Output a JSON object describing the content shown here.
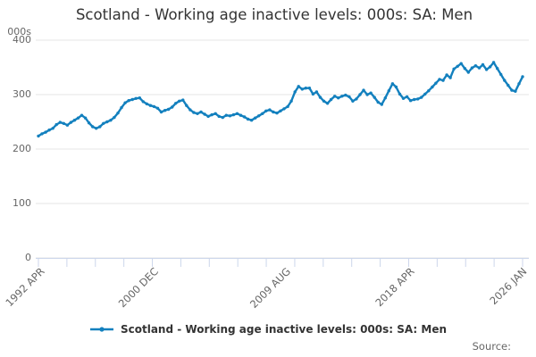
{
  "title": "Scotland - Working age inactive levels: 000s: SA: Men",
  "y_axis_unit": "000s",
  "legend": {
    "label": "Scotland - Working age inactive levels: 000s: SA: Men"
  },
  "source_label": "Source:",
  "chart_data": {
    "type": "line",
    "title": "Scotland - Working age inactive levels: 000s: SA: Men",
    "series_name": "Scotland - Working age inactive levels: 000s: SA: Men",
    "xlabel": "",
    "ylabel": "000s",
    "ylim": [
      0,
      400
    ],
    "yticks": [
      400,
      300,
      200,
      100,
      0
    ],
    "x_tick_labels": [
      "1992 APR",
      "2000 DEC",
      "2009 AUG",
      "2018 APR",
      "2026 JAN"
    ],
    "grid": "horizontal",
    "legend_position": "bottom",
    "line_color": "#1380be",
    "axis_color": "#ccd6eb",
    "grid_color": "#e6e6e6",
    "text_color": "#666666",
    "x": [
      "1992 APR",
      "1992 JUL",
      "1992 OCT",
      "1993 JAN",
      "1993 APR",
      "1993 JUL",
      "1993 OCT",
      "1994 JAN",
      "1994 APR",
      "1994 JUL",
      "1994 OCT",
      "1995 JAN",
      "1995 APR",
      "1995 JUL",
      "1995 OCT",
      "1996 JAN",
      "1996 APR",
      "1996 JUL",
      "1996 OCT",
      "1997 JAN",
      "1997 APR",
      "1997 JUL",
      "1997 OCT",
      "1998 JAN",
      "1998 APR",
      "1998 JUL",
      "1998 OCT",
      "1999 JAN",
      "1999 APR",
      "1999 JUL",
      "1999 OCT",
      "2000 JAN",
      "2000 APR",
      "2000 JUL",
      "2000 OCT",
      "2001 JAN",
      "2001 APR",
      "2001 JUL",
      "2001 OCT",
      "2002 JAN",
      "2002 APR",
      "2002 JUL",
      "2002 OCT",
      "2003 JAN",
      "2003 APR",
      "2003 JUL",
      "2003 OCT",
      "2004 JAN",
      "2004 APR",
      "2004 JUL",
      "2004 OCT",
      "2005 JAN",
      "2005 APR",
      "2005 JUL",
      "2005 OCT",
      "2006 JAN",
      "2006 APR",
      "2006 JUL",
      "2006 OCT",
      "2007 JAN",
      "2007 APR",
      "2007 JUL",
      "2007 OCT",
      "2008 JAN",
      "2008 APR",
      "2008 JUL",
      "2008 OCT",
      "2009 JAN",
      "2009 APR",
      "2009 JUL",
      "2009 OCT",
      "2010 JAN",
      "2010 APR",
      "2010 JUL",
      "2010 OCT",
      "2011 JAN",
      "2011 APR",
      "2011 JUL",
      "2011 OCT",
      "2012 JAN",
      "2012 APR",
      "2012 JUL",
      "2012 OCT",
      "2013 JAN",
      "2013 APR",
      "2013 JUL",
      "2013 OCT",
      "2014 JAN",
      "2014 APR",
      "2014 JUL",
      "2014 OCT",
      "2015 JAN",
      "2015 APR",
      "2015 JUL",
      "2015 OCT",
      "2016 JAN",
      "2016 APR",
      "2016 JUL",
      "2016 OCT",
      "2017 JAN",
      "2017 APR",
      "2017 JUL",
      "2017 OCT",
      "2018 JAN",
      "2018 APR",
      "2018 JUL",
      "2018 OCT",
      "2019 JAN",
      "2019 APR",
      "2019 JUL",
      "2019 OCT",
      "2020 JAN",
      "2020 APR",
      "2020 JUL",
      "2020 OCT",
      "2021 JAN",
      "2021 APR",
      "2021 JUL",
      "2021 OCT",
      "2022 JAN",
      "2022 APR",
      "2022 JUL",
      "2022 OCT",
      "2023 JAN",
      "2023 APR",
      "2023 JUL",
      "2023 OCT",
      "2024 JAN",
      "2024 APR",
      "2024 JUL",
      "2024 OCT",
      "2025 JAN",
      "2025 APR",
      "2025 JUL",
      "2025 OCT"
    ],
    "values": [
      224,
      228,
      231,
      235,
      238,
      245,
      249,
      247,
      244,
      249,
      253,
      257,
      262,
      257,
      248,
      241,
      238,
      241,
      247,
      250,
      253,
      258,
      266,
      276,
      285,
      289,
      291,
      293,
      294,
      287,
      283,
      280,
      278,
      275,
      268,
      271,
      273,
      277,
      284,
      288,
      290,
      280,
      272,
      267,
      265,
      268,
      264,
      260,
      263,
      265,
      260,
      258,
      262,
      261,
      263,
      265,
      262,
      259,
      255,
      253,
      257,
      261,
      265,
      270,
      272,
      268,
      266,
      270,
      274,
      278,
      288,
      305,
      315,
      310,
      312,
      312,
      301,
      305,
      295,
      288,
      284,
      291,
      297,
      294,
      297,
      299,
      296,
      288,
      292,
      300,
      308,
      300,
      303,
      295,
      286,
      282,
      294,
      307,
      320,
      314,
      301,
      293,
      296,
      289,
      291,
      292,
      295,
      301,
      307,
      314,
      321,
      328,
      326,
      336,
      331,
      347,
      352,
      357,
      348,
      341,
      349,
      353,
      349,
      355,
      346,
      351,
      359,
      348,
      337,
      326,
      317,
      308,
      306,
      320,
      333
    ]
  }
}
